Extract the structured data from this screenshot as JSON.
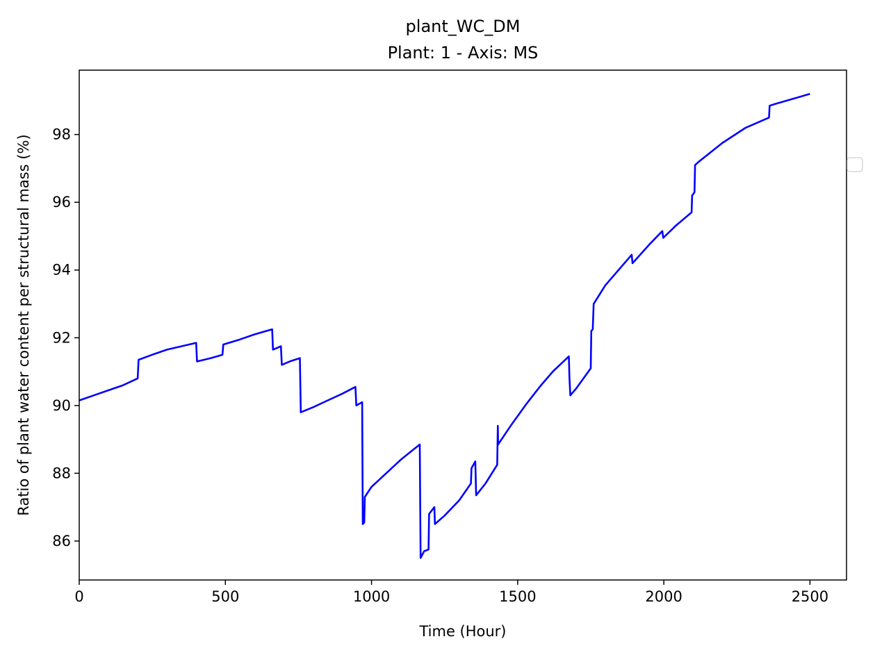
{
  "chart_data": {
    "type": "line",
    "title": "plant_WC_DM",
    "subtitle": "Plant: 1 - Axis: MS",
    "xlabel": "Time (Hour)",
    "ylabel": "Ratio of plant water content per structural mass (%)",
    "xlim": [
      0,
      2625
    ],
    "ylim": [
      84.85,
      99.9
    ],
    "xticks": [
      0,
      500,
      1000,
      1500,
      2000,
      2500
    ],
    "yticks": [
      86,
      88,
      90,
      92,
      94,
      96,
      98
    ],
    "grid": false,
    "legend": "right",
    "series": [
      {
        "color": "#0000ff",
        "points": [
          [
            0,
            90.15
          ],
          [
            50,
            90.3
          ],
          [
            100,
            90.45
          ],
          [
            150,
            90.6
          ],
          [
            200,
            90.8
          ],
          [
            203,
            91.35
          ],
          [
            250,
            91.5
          ],
          [
            300,
            91.65
          ],
          [
            350,
            91.75
          ],
          [
            400,
            91.85
          ],
          [
            403,
            91.3
          ],
          [
            450,
            91.4
          ],
          [
            490,
            91.5
          ],
          [
            493,
            91.8
          ],
          [
            550,
            91.95
          ],
          [
            600,
            92.1
          ],
          [
            660,
            92.25
          ],
          [
            663,
            91.65
          ],
          [
            690,
            91.75
          ],
          [
            693,
            91.2
          ],
          [
            720,
            91.3
          ],
          [
            755,
            91.4
          ],
          [
            758,
            89.8
          ],
          [
            800,
            89.95
          ],
          [
            850,
            90.15
          ],
          [
            900,
            90.35
          ],
          [
            945,
            90.55
          ],
          [
            948,
            90.0
          ],
          [
            968,
            90.1
          ],
          [
            970,
            86.5
          ],
          [
            975,
            86.55
          ],
          [
            977,
            87.3
          ],
          [
            1000,
            87.6
          ],
          [
            1050,
            88.0
          ],
          [
            1100,
            88.4
          ],
          [
            1165,
            88.85
          ],
          [
            1168,
            85.5
          ],
          [
            1180,
            85.7
          ],
          [
            1195,
            85.75
          ],
          [
            1197,
            86.8
          ],
          [
            1215,
            87.0
          ],
          [
            1217,
            86.5
          ],
          [
            1250,
            86.75
          ],
          [
            1300,
            87.2
          ],
          [
            1340,
            87.7
          ],
          [
            1342,
            88.15
          ],
          [
            1355,
            88.35
          ],
          [
            1358,
            87.35
          ],
          [
            1390,
            87.7
          ],
          [
            1430,
            88.25
          ],
          [
            1432,
            89.4
          ],
          [
            1433,
            88.85
          ],
          [
            1480,
            89.45
          ],
          [
            1530,
            90.05
          ],
          [
            1580,
            90.6
          ],
          [
            1620,
            91.0
          ],
          [
            1675,
            91.45
          ],
          [
            1677,
            90.85
          ],
          [
            1680,
            90.3
          ],
          [
            1700,
            90.5
          ],
          [
            1750,
            91.1
          ],
          [
            1752,
            92.2
          ],
          [
            1757,
            92.25
          ],
          [
            1760,
            93.0
          ],
          [
            1800,
            93.55
          ],
          [
            1850,
            94.05
          ],
          [
            1890,
            94.45
          ],
          [
            1893,
            94.2
          ],
          [
            1950,
            94.75
          ],
          [
            1995,
            95.15
          ],
          [
            1998,
            94.95
          ],
          [
            2040,
            95.3
          ],
          [
            2095,
            95.7
          ],
          [
            2097,
            96.2
          ],
          [
            2105,
            96.3
          ],
          [
            2107,
            97.1
          ],
          [
            2120,
            97.2
          ],
          [
            2200,
            97.75
          ],
          [
            2280,
            98.2
          ],
          [
            2360,
            98.5
          ],
          [
            2362,
            98.85
          ],
          [
            2380,
            98.9
          ],
          [
            2440,
            99.05
          ],
          [
            2500,
            99.2
          ]
        ]
      }
    ]
  }
}
